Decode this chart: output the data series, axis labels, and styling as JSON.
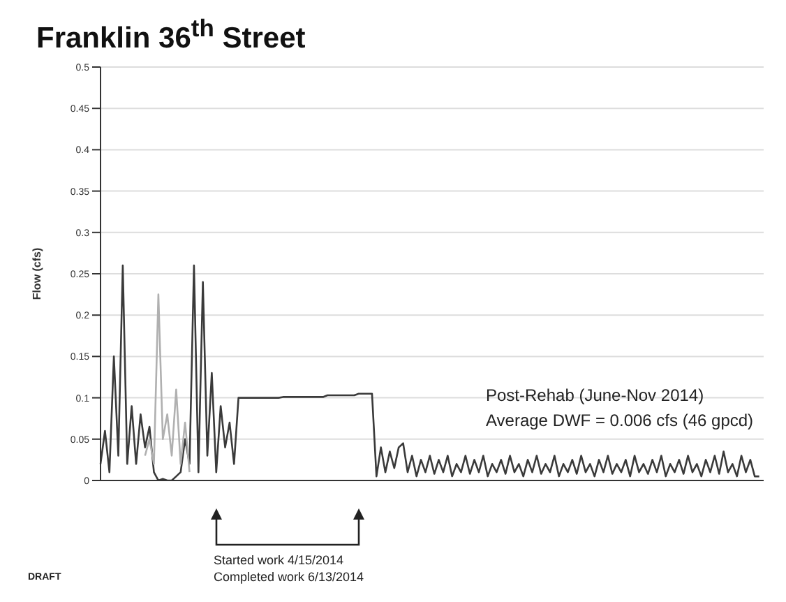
{
  "chart_data": {
    "type": "line",
    "title": "Franklin 36$^{th}$ Street",
    "ylabel": "Flow (cfs)",
    "annotations": [
      "Post-Rehab (June-Nov 2014)",
      "Average DWF = 0.006 cfs  (46 gpcd)",
      "Started work 4/15/2014",
      "Completed work 6/13/2014",
      "DRAFT"
    ],
    "categories": [
      null,
      null,
      null,
      null,
      null,
      null,
      null,
      null,
      null,
      null,
      null,
      null,
      null,
      null,
      null,
      null,
      null,
      null,
      null,
      null,
      null,
      null,
      null,
      null,
      null,
      null,
      null,
      null,
      null,
      null,
      null,
      null,
      null,
      null,
      null,
      null,
      null,
      null,
      null,
      null,
      null,
      null,
      null,
      null,
      null,
      null,
      null,
      null,
      null,
      null,
      null,
      null,
      null,
      null,
      null,
      null,
      null,
      null,
      null,
      null,
      null,
      null,
      null,
      null,
      null,
      null,
      null,
      null,
      null,
      null,
      null,
      null,
      null,
      null,
      null,
      null,
      null,
      null,
      null,
      null,
      null,
      null,
      null,
      null,
      null,
      null,
      null,
      null,
      null,
      null,
      null,
      null,
      null,
      null,
      null,
      null,
      null,
      null,
      null,
      null,
      null,
      null,
      null,
      null,
      null,
      null,
      null,
      null,
      null,
      null,
      null,
      null,
      null,
      null,
      null,
      null,
      null,
      null,
      null,
      null,
      null,
      null,
      null,
      null,
      null,
      null,
      null,
      null,
      null,
      null,
      null,
      null,
      null,
      null,
      null,
      null,
      null,
      null,
      null,
      null,
      null,
      null,
      null,
      null,
      null,
      null,
      null,
      null,
      null,
      null
    ],
    "series": [
      {
        "color": "#3a3a3a",
        "values": [
          0.02,
          0.06,
          0.01,
          0.15,
          0.03,
          0.26,
          0.02,
          0.09,
          0.02,
          0.08,
          0.04,
          0.065,
          0.01,
          0,
          0.002,
          0,
          0,
          0.005,
          0.01,
          0.05,
          0.02,
          0.26,
          0.01,
          0.24,
          0.03,
          0.13,
          0.01,
          0.09,
          0.04,
          0.07,
          0.02,
          0.1,
          0.1,
          0.1,
          0.1,
          0.1,
          0.1,
          0.1,
          0.1,
          0.1,
          0.1,
          0.101,
          0.101,
          0.101,
          0.101,
          0.101,
          0.101,
          0.101,
          0.101,
          0.101,
          0.101,
          0.103,
          0.103,
          0.103,
          0.103,
          0.103,
          0.103,
          0.103,
          0.105,
          0.105,
          0.105,
          0.105,
          0.005,
          0.04,
          0.01,
          0.035,
          0.015,
          0.04,
          0.045,
          0.01,
          0.03,
          0.005,
          0.025,
          0.01,
          0.03,
          0.008,
          0.025,
          0.01,
          0.03,
          0.005,
          0.02,
          0.01,
          0.03,
          0.008,
          0.025,
          0.01,
          0.03,
          0.005,
          0.02,
          0.01,
          0.025,
          0.008,
          0.03,
          0.01,
          0.02,
          0.005,
          0.025,
          0.01,
          0.03,
          0.008,
          0.02,
          0.01,
          0.03,
          0.005,
          0.02,
          0.01,
          0.025,
          0.008,
          0.03,
          0.01,
          0.02,
          0.005,
          0.025,
          0.01,
          0.03,
          0.008,
          0.02,
          0.01,
          0.025,
          0.005,
          0.03,
          0.01,
          0.02,
          0.008,
          0.025,
          0.01,
          0.03,
          0.005,
          0.02,
          0.01,
          0.025,
          0.008,
          0.03,
          0.01,
          0.02,
          0.005,
          0.025,
          0.01,
          0.03,
          0.008,
          0.035,
          0.01,
          0.02,
          0.005,
          0.03,
          0.01,
          0.025,
          0.005,
          0.005,
          null
        ]
      },
      {
        "color": "#b0b0b0",
        "values": [
          null,
          null,
          null,
          null,
          null,
          null,
          null,
          null,
          null,
          null,
          0.03,
          0.05,
          0.02,
          0.225,
          0.05,
          0.08,
          0.03,
          0.11,
          0.02,
          0.07,
          0.01,
          null,
          null,
          null,
          null,
          null,
          null,
          null,
          null,
          null,
          null,
          null,
          null,
          null,
          null,
          null,
          null,
          null,
          null,
          null,
          null,
          null,
          null,
          null,
          null,
          null,
          null,
          null,
          null,
          null,
          null,
          null,
          null,
          null,
          null,
          null,
          null,
          null,
          null,
          null,
          null,
          null,
          null,
          null,
          null,
          null,
          null,
          null,
          null,
          null,
          null,
          null,
          null,
          null,
          null,
          null,
          null,
          null,
          null,
          null,
          null,
          null,
          null,
          null,
          null,
          null,
          null,
          null,
          null,
          null,
          null,
          null,
          null,
          null,
          null,
          null,
          null,
          null,
          null,
          null,
          null,
          null,
          null,
          null,
          null,
          null,
          null,
          null,
          null,
          null,
          null,
          null,
          null,
          null,
          null,
          null,
          null,
          null,
          null,
          null,
          null,
          null,
          null,
          null,
          null,
          null,
          null,
          null,
          null,
          null,
          null,
          null,
          null,
          null,
          null,
          null,
          null,
          null,
          null,
          null,
          null,
          null,
          null,
          null,
          null,
          null,
          null,
          null,
          null,
          null
        ]
      }
    ],
    "ylim": [
      0,
      0.5
    ],
    "yticks": [
      0,
      0.05,
      0.1,
      0.15,
      0.2,
      0.25,
      0.3,
      0.35,
      0.4,
      0.45,
      0.5
    ],
    "tick_labels": "y",
    "grid": "y",
    "legend": false,
    "marker": "none",
    "line_style": "solid"
  }
}
